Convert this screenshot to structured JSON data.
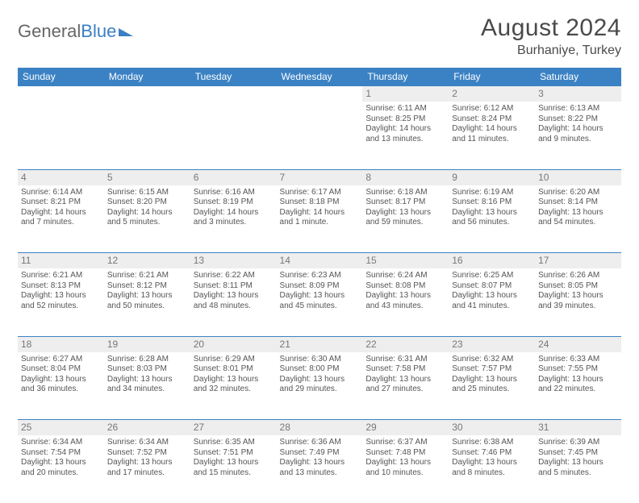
{
  "logo": {
    "word1": "General",
    "word2": "Blue"
  },
  "title": "August 2024",
  "location": "Burhaniye, Turkey",
  "colors": {
    "header_bg": "#3b82c4",
    "header_text": "#ffffff",
    "daynum_bg": "#eeeeee",
    "daynum_text": "#777777",
    "body_text": "#555555",
    "rule": "#3b82c4"
  },
  "daysOfWeek": [
    "Sunday",
    "Monday",
    "Tuesday",
    "Wednesday",
    "Thursday",
    "Friday",
    "Saturday"
  ],
  "weeks": [
    [
      null,
      null,
      null,
      null,
      {
        "n": "1",
        "sunrise": "6:11 AM",
        "sunset": "8:25 PM",
        "daylight": "14 hours and 13 minutes."
      },
      {
        "n": "2",
        "sunrise": "6:12 AM",
        "sunset": "8:24 PM",
        "daylight": "14 hours and 11 minutes."
      },
      {
        "n": "3",
        "sunrise": "6:13 AM",
        "sunset": "8:22 PM",
        "daylight": "14 hours and 9 minutes."
      }
    ],
    [
      {
        "n": "4",
        "sunrise": "6:14 AM",
        "sunset": "8:21 PM",
        "daylight": "14 hours and 7 minutes."
      },
      {
        "n": "5",
        "sunrise": "6:15 AM",
        "sunset": "8:20 PM",
        "daylight": "14 hours and 5 minutes."
      },
      {
        "n": "6",
        "sunrise": "6:16 AM",
        "sunset": "8:19 PM",
        "daylight": "14 hours and 3 minutes."
      },
      {
        "n": "7",
        "sunrise": "6:17 AM",
        "sunset": "8:18 PM",
        "daylight": "14 hours and 1 minute."
      },
      {
        "n": "8",
        "sunrise": "6:18 AM",
        "sunset": "8:17 PM",
        "daylight": "13 hours and 59 minutes."
      },
      {
        "n": "9",
        "sunrise": "6:19 AM",
        "sunset": "8:16 PM",
        "daylight": "13 hours and 56 minutes."
      },
      {
        "n": "10",
        "sunrise": "6:20 AM",
        "sunset": "8:14 PM",
        "daylight": "13 hours and 54 minutes."
      }
    ],
    [
      {
        "n": "11",
        "sunrise": "6:21 AM",
        "sunset": "8:13 PM",
        "daylight": "13 hours and 52 minutes."
      },
      {
        "n": "12",
        "sunrise": "6:21 AM",
        "sunset": "8:12 PM",
        "daylight": "13 hours and 50 minutes."
      },
      {
        "n": "13",
        "sunrise": "6:22 AM",
        "sunset": "8:11 PM",
        "daylight": "13 hours and 48 minutes."
      },
      {
        "n": "14",
        "sunrise": "6:23 AM",
        "sunset": "8:09 PM",
        "daylight": "13 hours and 45 minutes."
      },
      {
        "n": "15",
        "sunrise": "6:24 AM",
        "sunset": "8:08 PM",
        "daylight": "13 hours and 43 minutes."
      },
      {
        "n": "16",
        "sunrise": "6:25 AM",
        "sunset": "8:07 PM",
        "daylight": "13 hours and 41 minutes."
      },
      {
        "n": "17",
        "sunrise": "6:26 AM",
        "sunset": "8:05 PM",
        "daylight": "13 hours and 39 minutes."
      }
    ],
    [
      {
        "n": "18",
        "sunrise": "6:27 AM",
        "sunset": "8:04 PM",
        "daylight": "13 hours and 36 minutes."
      },
      {
        "n": "19",
        "sunrise": "6:28 AM",
        "sunset": "8:03 PM",
        "daylight": "13 hours and 34 minutes."
      },
      {
        "n": "20",
        "sunrise": "6:29 AM",
        "sunset": "8:01 PM",
        "daylight": "13 hours and 32 minutes."
      },
      {
        "n": "21",
        "sunrise": "6:30 AM",
        "sunset": "8:00 PM",
        "daylight": "13 hours and 29 minutes."
      },
      {
        "n": "22",
        "sunrise": "6:31 AM",
        "sunset": "7:58 PM",
        "daylight": "13 hours and 27 minutes."
      },
      {
        "n": "23",
        "sunrise": "6:32 AM",
        "sunset": "7:57 PM",
        "daylight": "13 hours and 25 minutes."
      },
      {
        "n": "24",
        "sunrise": "6:33 AM",
        "sunset": "7:55 PM",
        "daylight": "13 hours and 22 minutes."
      }
    ],
    [
      {
        "n": "25",
        "sunrise": "6:34 AM",
        "sunset": "7:54 PM",
        "daylight": "13 hours and 20 minutes."
      },
      {
        "n": "26",
        "sunrise": "6:34 AM",
        "sunset": "7:52 PM",
        "daylight": "13 hours and 17 minutes."
      },
      {
        "n": "27",
        "sunrise": "6:35 AM",
        "sunset": "7:51 PM",
        "daylight": "13 hours and 15 minutes."
      },
      {
        "n": "28",
        "sunrise": "6:36 AM",
        "sunset": "7:49 PM",
        "daylight": "13 hours and 13 minutes."
      },
      {
        "n": "29",
        "sunrise": "6:37 AM",
        "sunset": "7:48 PM",
        "daylight": "13 hours and 10 minutes."
      },
      {
        "n": "30",
        "sunrise": "6:38 AM",
        "sunset": "7:46 PM",
        "daylight": "13 hours and 8 minutes."
      },
      {
        "n": "31",
        "sunrise": "6:39 AM",
        "sunset": "7:45 PM",
        "daylight": "13 hours and 5 minutes."
      }
    ]
  ],
  "labels": {
    "sunrise": "Sunrise: ",
    "sunset": "Sunset: ",
    "daylight": "Daylight: "
  }
}
